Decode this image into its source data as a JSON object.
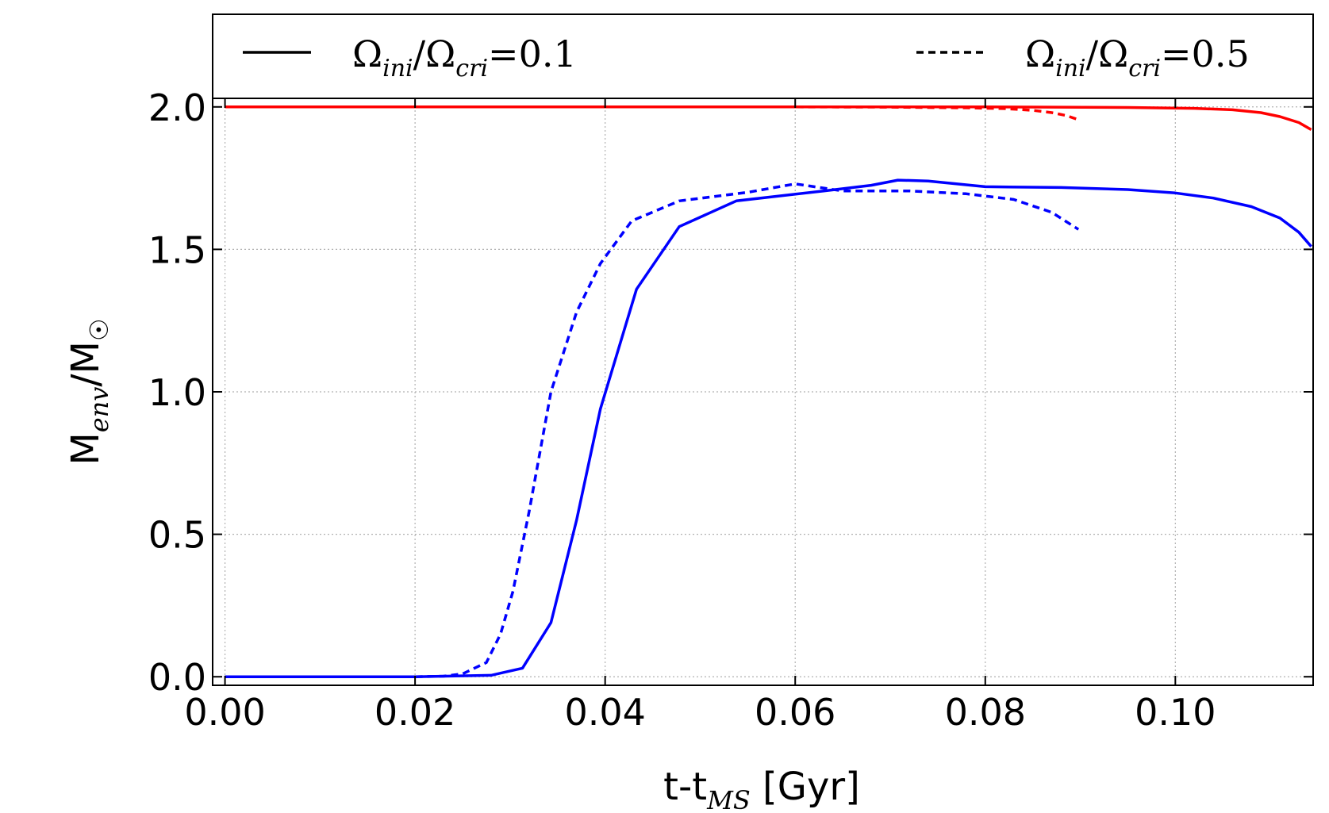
{
  "chart_data": {
    "type": "line",
    "xlabel": "t-t_MS [Gyr]",
    "xlabel_main": "t-t",
    "xlabel_sub": "MS",
    "xlabel_unit": " [Gyr]",
    "ylabel": "M_env/M_☉",
    "ylabel_main": "M",
    "ylabel_sub": "env",
    "ylabel_tail": "/M",
    "ylabel_sun": "☉",
    "xlim": [
      -0.0013,
      0.1145
    ],
    "ylim": [
      -0.03,
      2.03
    ],
    "xticks": [
      0.0,
      0.02,
      0.04,
      0.06,
      0.08,
      0.1
    ],
    "xtick_labels": [
      "0.00",
      "0.02",
      "0.04",
      "0.06",
      "0.08",
      "0.10"
    ],
    "yticks": [
      0.0,
      0.5,
      1.0,
      1.5,
      2.0
    ],
    "ytick_labels": [
      "0.0",
      "0.5",
      "1.0",
      "1.5",
      "2.0"
    ],
    "grid": true,
    "legend_position": "top, above plot",
    "legend": [
      {
        "style": "solid",
        "label": "Ω_ini/Ω_cri=0.1",
        "value": "0.1"
      },
      {
        "style": "dashed",
        "label": "Ω_ini/Ω_cri=0.5",
        "value": "0.5"
      }
    ],
    "series": [
      {
        "color": "#ff0000",
        "style": "solid",
        "x": [
          0.0,
          0.02,
          0.04,
          0.06,
          0.08,
          0.095,
          0.102,
          0.106,
          0.109,
          0.111,
          0.113,
          0.1143
        ],
        "y": [
          2.0,
          2.0,
          2.0,
          2.0,
          2.0,
          1.998,
          1.995,
          1.99,
          1.98,
          1.966,
          1.945,
          1.92
        ]
      },
      {
        "color": "#ff0000",
        "style": "dashed",
        "x": [
          0.0,
          0.02,
          0.04,
          0.06,
          0.07,
          0.078,
          0.082,
          0.085,
          0.087,
          0.0885,
          0.0898
        ],
        "y": [
          2.0,
          2.0,
          2.0,
          2.0,
          1.999,
          1.997,
          1.994,
          1.988,
          1.98,
          1.97,
          1.955
        ]
      },
      {
        "color": "#0000ff",
        "style": "solid",
        "x": [
          0.0,
          0.02,
          0.028,
          0.0313,
          0.0343,
          0.037,
          0.0395,
          0.0433,
          0.0478,
          0.0538,
          0.063,
          0.068,
          0.0708,
          0.074,
          0.08,
          0.088,
          0.095,
          0.1,
          0.104,
          0.108,
          0.111,
          0.113,
          0.1143
        ],
        "y": [
          0.0,
          0.0,
          0.005,
          0.03,
          0.19,
          0.55,
          0.94,
          1.36,
          1.58,
          1.67,
          1.705,
          1.725,
          1.743,
          1.74,
          1.72,
          1.717,
          1.71,
          1.698,
          1.68,
          1.65,
          1.61,
          1.56,
          1.51
        ]
      },
      {
        "color": "#0000ff",
        "style": "dashed",
        "x": [
          0.0,
          0.02,
          0.023,
          0.025,
          0.0275,
          0.029,
          0.0303,
          0.032,
          0.0343,
          0.037,
          0.0395,
          0.0428,
          0.0478,
          0.055,
          0.06,
          0.065,
          0.072,
          0.078,
          0.083,
          0.087,
          0.0898
        ],
        "y": [
          0.0,
          0.0,
          0.002,
          0.01,
          0.05,
          0.15,
          0.3,
          0.58,
          1.0,
          1.28,
          1.45,
          1.6,
          1.67,
          1.7,
          1.73,
          1.705,
          1.705,
          1.695,
          1.675,
          1.63,
          1.57
        ]
      }
    ]
  }
}
